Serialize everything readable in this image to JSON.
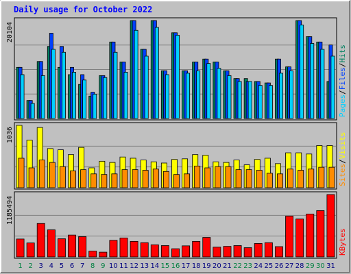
{
  "chart_data": {
    "type": "bar",
    "title": "Daily usage for October 2022",
    "colors": {
      "background": "#c0c0c0",
      "panel": "#c0c0c0",
      "grid": "#808080",
      "title_text": "#0000ff",
      "hits": "#00805f",
      "files": "#0040ff",
      "pages": "#00d0ff",
      "visits": "#ffff00",
      "sites": "#ff8c00",
      "kbytes": "#ff0000",
      "weekday_label": "#000080",
      "weekend_label": "#008040"
    },
    "categories": [
      "1",
      "2",
      "3",
      "4",
      "5",
      "6",
      "7",
      "8",
      "9",
      "10",
      "11",
      "12",
      "13",
      "14",
      "15",
      "16",
      "17",
      "18",
      "19",
      "20",
      "21",
      "22",
      "23",
      "24",
      "25",
      "26",
      "27",
      "28",
      "29",
      "30",
      "31"
    ],
    "weekend_days": [
      1,
      2,
      8,
      9,
      15,
      16,
      22,
      23,
      29,
      30
    ],
    "panels": [
      {
        "id": "requests",
        "max_label": "20104",
        "ymax": 20104,
        "legend": [
          {
            "text": "Pages",
            "color": "#00d0ff"
          },
          {
            "text": "/",
            "color": "#000000"
          },
          {
            "text": "Files",
            "color": "#0040ff"
          },
          {
            "text": "/",
            "color": "#000000"
          },
          {
            "text": "Hits",
            "color": "#00805f"
          }
        ],
        "series": [
          {
            "name": "Hits",
            "color": "#00805f",
            "values": [
              10500,
              3700,
              11700,
              14800,
              10500,
              9000,
              7000,
              4600,
              8800,
              15700,
              11600,
              20104,
              14200,
              20104,
              9800,
              17600,
              9800,
              11600,
              12200,
              11600,
              9800,
              8200,
              8200,
              7600,
              7300,
              12200,
              10600,
              20104,
              16800,
              15700,
              7600
            ]
          },
          {
            "name": "Files",
            "color": "#0040ff",
            "values": [
              10500,
              3700,
              11700,
              17500,
              14800,
              10500,
              9000,
              5400,
              8800,
              15700,
              11600,
              20104,
              14200,
              20104,
              9800,
              17600,
              9800,
              11600,
              12200,
              11600,
              9800,
              8200,
              7600,
              7600,
              7300,
              12200,
              10600,
              20104,
              16800,
              15700,
              15100
            ]
          },
          {
            "name": "Pages",
            "color": "#00d0ff",
            "values": [
              9000,
              3100,
              8800,
              14200,
              13600,
              9500,
              7900,
              5000,
              8400,
              13600,
              9500,
              18100,
              12800,
              18700,
              9000,
              17100,
              9300,
              9800,
              11300,
              10300,
              8800,
              7600,
              7600,
              6800,
              6800,
              9300,
              9800,
              19200,
              15400,
              14200,
              12800
            ]
          }
        ]
      },
      {
        "id": "visitors",
        "max_label": "1036",
        "ymax": 1036,
        "legend": [
          {
            "text": "Sites",
            "color": "#ff8c00"
          },
          {
            "text": "/",
            "color": "#000000"
          },
          {
            "text": "Visits",
            "color": "#ffff00"
          }
        ],
        "series": [
          {
            "name": "Visits",
            "color": "#ffff00",
            "values": [
              1036,
              790,
              1000,
              650,
              630,
              550,
              670,
              330,
              440,
              420,
              510,
              490,
              460,
              430,
              410,
              470,
              480,
              550,
              540,
              430,
              420,
              460,
              380,
              470,
              490,
              400,
              580,
              580,
              560,
              700,
              700
            ]
          },
          {
            "name": "Sites",
            "color": "#ff8c00",
            "values": [
              490,
              330,
              460,
              420,
              350,
              280,
              300,
              230,
              220,
              230,
              300,
              300,
              290,
              310,
              270,
              220,
              230,
              360,
              330,
              350,
              350,
              300,
              300,
              290,
              240,
              230,
              310,
              290,
              310,
              340,
              340
            ]
          }
        ]
      },
      {
        "id": "volume",
        "max_label": "1185494",
        "ymax": 1185494,
        "legend": [
          {
            "text": "KBytes",
            "color": "#ff0000"
          }
        ],
        "series": [
          {
            "name": "KBytes",
            "color": "#ff0000",
            "values": [
              340000,
              265000,
              635000,
              515000,
              345000,
              415000,
              385000,
              110000,
              90000,
              315000,
              360000,
              295000,
              270000,
              230000,
              215000,
              155000,
              210000,
              295000,
              370000,
              185000,
              200000,
              215000,
              175000,
              255000,
              270000,
              195000,
              775000,
              720000,
              815000,
              880000,
              1185494
            ]
          }
        ]
      }
    ]
  }
}
